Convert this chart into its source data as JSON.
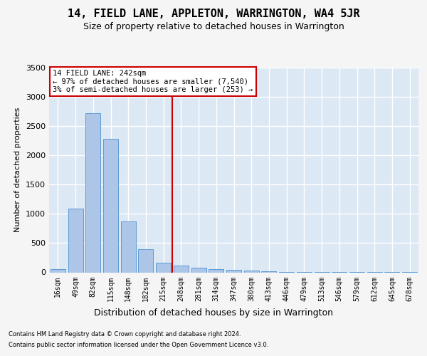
{
  "title": "14, FIELD LANE, APPLETON, WARRINGTON, WA4 5JR",
  "subtitle": "Size of property relative to detached houses in Warrington",
  "xlabel": "Distribution of detached houses by size in Warrington",
  "ylabel": "Number of detached properties",
  "bar_labels": [
    "16sqm",
    "49sqm",
    "82sqm",
    "115sqm",
    "148sqm",
    "182sqm",
    "215sqm",
    "248sqm",
    "281sqm",
    "314sqm",
    "347sqm",
    "380sqm",
    "413sqm",
    "446sqm",
    "479sqm",
    "513sqm",
    "546sqm",
    "579sqm",
    "612sqm",
    "645sqm",
    "678sqm"
  ],
  "bar_values": [
    50,
    1090,
    2720,
    2280,
    870,
    400,
    160,
    120,
    80,
    55,
    40,
    25,
    15,
    10,
    5,
    5,
    3,
    3,
    2,
    2,
    2
  ],
  "bar_color": "#adc6e8",
  "bar_edgecolor": "#5b9bd5",
  "vline_color": "#cc0000",
  "vline_x": 7.0,
  "annotation_text": "14 FIELD LANE: 242sqm\n← 97% of detached houses are smaller (7,540)\n3% of semi-detached houses are larger (253) →",
  "annotation_box_facecolor": "#ffffff",
  "annotation_box_edgecolor": "#cc0000",
  "ylim": [
    0,
    3500
  ],
  "yticks": [
    0,
    500,
    1000,
    1500,
    2000,
    2500,
    3000,
    3500
  ],
  "bg_color": "#dde8f5",
  "grid_color": "#ffffff",
  "fig_facecolor": "#f5f5f5",
  "footer1": "Contains HM Land Registry data © Crown copyright and database right 2024.",
  "footer2": "Contains public sector information licensed under the Open Government Licence v3.0.",
  "title_fontsize": 11,
  "subtitle_fontsize": 9,
  "ylabel_fontsize": 8,
  "xlabel_fontsize": 9,
  "tick_fontsize": 7,
  "annotation_fontsize": 7.5,
  "footer_fontsize": 6
}
